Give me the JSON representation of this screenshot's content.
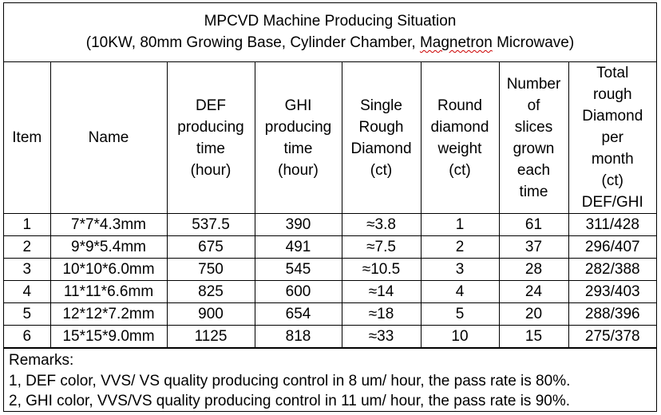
{
  "title": {
    "line1": "MPCVD Machine Producing Situation",
    "line2_prefix": "(10KW, 80mm Growing Base, Cylinder Chamber, ",
    "line2_misspelled": "Magnetron",
    "line2_suffix": " Microwave)"
  },
  "table": {
    "headers": [
      [
        "Item"
      ],
      [
        "Name"
      ],
      [
        "DEF",
        "producing",
        "time",
        "(hour)"
      ],
      [
        "GHI",
        "producing",
        "time",
        "(hour)"
      ],
      [
        "Single",
        "Rough",
        "Diamond",
        "(ct)"
      ],
      [
        "Round",
        "diamond",
        "weight",
        "(ct)"
      ],
      [
        "Number",
        "of",
        "slices",
        "grown",
        "each",
        "time"
      ],
      [
        "Total",
        "rough",
        "Diamond",
        "per",
        "month",
        "(ct)",
        "DEF/GHI"
      ]
    ],
    "rows": [
      [
        "1",
        "7*7*4.3mm",
        "537.5",
        "390",
        "≈3.8",
        "1",
        "61",
        "311/428"
      ],
      [
        "2",
        "9*9*5.4mm",
        "675",
        "491",
        "≈7.5",
        "2",
        "37",
        "296/407"
      ],
      [
        "3",
        "10*10*6.0mm",
        "750",
        "545",
        "≈10.5",
        "3",
        "28",
        "282/388"
      ],
      [
        "4",
        "11*11*6.6mm",
        "825",
        "600",
        "≈14",
        "4",
        "24",
        "293/403"
      ],
      [
        "5",
        "12*12*7.2mm",
        "900",
        "654",
        "≈18",
        "5",
        "20",
        "288/396"
      ],
      [
        "6",
        "15*15*9.0mm",
        "1125",
        "818",
        "≈33",
        "10",
        "15",
        "275/378"
      ]
    ]
  },
  "remarks": {
    "heading": "Remarks:",
    "lines": [
      "1, DEF color, VVS/ VS quality producing control in 8 um/ hour, the pass rate is 80%.",
      "2, GHI color, VVS/VS quality producing control in 11 um/ hour, the pass rate is 90%."
    ]
  }
}
